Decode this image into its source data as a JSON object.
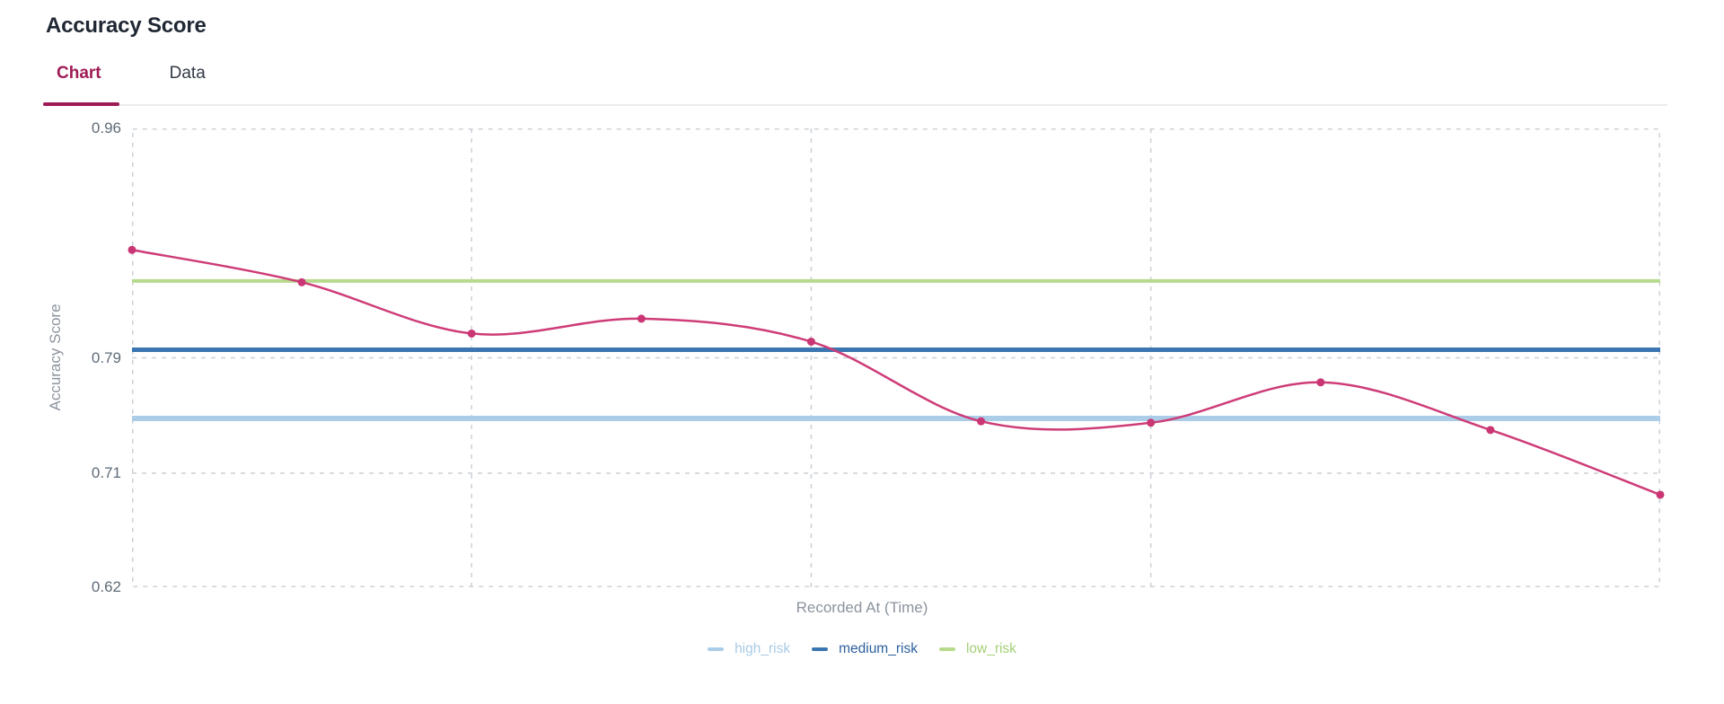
{
  "header": {
    "title": "Accuracy Score"
  },
  "tabs": {
    "chart_label": "Chart",
    "data_label": "Data",
    "active": "Chart"
  },
  "colors": {
    "accent_tab": "#9e1c55",
    "series_line": "#ce3c78",
    "series_marker": "#ca3674",
    "grid": "#ccd1d7"
  },
  "chart_data": {
    "type": "line",
    "title": "Accuracy Score",
    "xlabel": "Recorded At (Time)",
    "ylabel": "Accuracy Score",
    "x": [
      1,
      2,
      3,
      4,
      5,
      6,
      7,
      8,
      9,
      10
    ],
    "x_tick_labels": [],
    "yticks": [
      "0.96",
      "0.79",
      "0.71",
      "0.62"
    ],
    "ylim": [
      0.62,
      0.96
    ],
    "grid": "dashed",
    "legend_position": "bottom-center",
    "series": [
      {
        "name": "Accuracy Score",
        "style": "spline",
        "color": "#ce3c78",
        "marker_color": "#ca3674",
        "values": [
          0.87,
          0.846,
          0.808,
          0.819,
          0.802,
          0.746,
          0.745,
          0.773,
          0.74,
          0.693
        ]
      }
    ],
    "reference_lines": [
      {
        "name": "high_risk",
        "value": 0.748,
        "line_color": "#abcde8",
        "label_color": "#a9cbe6",
        "thickness": 6
      },
      {
        "name": "medium_risk",
        "value": 0.796,
        "line_color": "#3a76b1",
        "label_color": "#2c5f9d",
        "thickness": 5
      },
      {
        "name": "low_risk",
        "value": 0.847,
        "line_color": "#b7da8d",
        "label_color": "#a4d077",
        "thickness": 4
      }
    ]
  }
}
